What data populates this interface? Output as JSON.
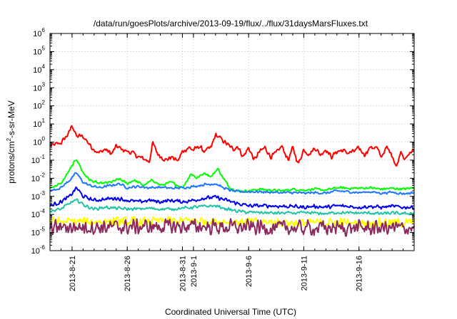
{
  "chart_data": {
    "type": "line",
    "title": "/data/run/goesPlots/archive/2013-09-19/flux/../flux/31daysMarsFluxes.txt",
    "xlabel": "Coordinated Universal Time (UTC)",
    "ylabel": "protons/cm2-s-sr-MeV",
    "ylabel_parts": {
      "base": "protons/cm",
      "sup": "2",
      "rest": "-s-sr-MeV"
    },
    "y_scale": "log",
    "ylim_exp": [
      -6,
      6
    ],
    "y_ticks": [
      {
        "base": "10",
        "exp": "-6"
      },
      {
        "base": "10",
        "exp": "-5"
      },
      {
        "base": "10",
        "exp": "-4"
      },
      {
        "base": "10",
        "exp": "-3"
      },
      {
        "base": "10",
        "exp": "-2"
      },
      {
        "base": "10",
        "exp": "-1"
      },
      {
        "base": "10",
        "exp": "0"
      },
      {
        "base": "10",
        "exp": "1"
      },
      {
        "base": "10",
        "exp": "2"
      },
      {
        "base": "10",
        "exp": "3"
      },
      {
        "base": "10",
        "exp": "4"
      },
      {
        "base": "10",
        "exp": "5"
      },
      {
        "base": "10",
        "exp": "6"
      }
    ],
    "xlim": [
      "2013-08-19",
      "2013-09-21"
    ],
    "x_ticks": [
      {
        "date": "2013-08-21",
        "label": "2013-8-21"
      },
      {
        "date": "2013-08-26",
        "label": "2013-8-26"
      },
      {
        "date": "2013-08-31",
        "label": "2013-8-31"
      },
      {
        "date": "2013-09-01",
        "label": "2013-9-1"
      },
      {
        "date": "2013-09-06",
        "label": "2013-9-6"
      },
      {
        "date": "2013-09-11",
        "label": "2013-9-11"
      },
      {
        "date": "2013-09-16",
        "label": "2013-9-16"
      }
    ],
    "grid": true,
    "series": [
      {
        "color": "#ff0000",
        "noise": 0.15,
        "points": [
          [
            "2013-08-19",
            0.6
          ],
          [
            "2013-08-20",
            0.9
          ],
          [
            "2013-08-20.7",
            3
          ],
          [
            "2013-08-21",
            9
          ],
          [
            "2013-08-21.4",
            2
          ],
          [
            "2013-08-21.8",
            2.2
          ],
          [
            "2013-08-22.2",
            1.5
          ],
          [
            "2013-08-22.8",
            0.5
          ],
          [
            "2013-08-23.4",
            0.25
          ],
          [
            "2013-08-24",
            0.4
          ],
          [
            "2013-08-24.6",
            0.22
          ],
          [
            "2013-08-25",
            0.6
          ],
          [
            "2013-08-25.5",
            0.4
          ],
          [
            "2013-08-26",
            0.3
          ],
          [
            "2013-08-26.5",
            0.25
          ],
          [
            "2013-08-27",
            0.15
          ],
          [
            "2013-08-27.5",
            0.12
          ],
          [
            "2013-08-28",
            0.08
          ],
          [
            "2013-08-28.3",
            0.9
          ],
          [
            "2013-08-28.8",
            0.2
          ],
          [
            "2013-08-29.5",
            0.1
          ],
          [
            "2013-08-30",
            0.15
          ],
          [
            "2013-08-30.6",
            0.09
          ],
          [
            "2013-08-31",
            0.3
          ],
          [
            "2013-08-31.6",
            0.5
          ],
          [
            "2013-09-01",
            0.35
          ],
          [
            "2013-09-01.5",
            0.6
          ],
          [
            "2013-09-02",
            0.3
          ],
          [
            "2013-09-02.6",
            0.5
          ],
          [
            "2013-09-03",
            2.5
          ],
          [
            "2013-09-03.5",
            1.5
          ],
          [
            "2013-09-04",
            0.8
          ],
          [
            "2013-09-04.6",
            0.4
          ],
          [
            "2013-09-05",
            0.6
          ],
          [
            "2013-09-05.5",
            0.15
          ],
          [
            "2013-09-06",
            0.5
          ],
          [
            "2013-09-06.5",
            0.1
          ],
          [
            "2013-09-07",
            0.3
          ],
          [
            "2013-09-07.5",
            0.5
          ],
          [
            "2013-09-08",
            0.15
          ],
          [
            "2013-09-08.5",
            0.25
          ],
          [
            "2013-09-09",
            0.6
          ],
          [
            "2013-09-09.6",
            0.1
          ],
          [
            "2013-09-10",
            0.5
          ],
          [
            "2013-09-10.5",
            0.06
          ],
          [
            "2013-09-11",
            0.4
          ],
          [
            "2013-09-11.5",
            0.2
          ],
          [
            "2013-09-12",
            0.5
          ],
          [
            "2013-09-12.5",
            0.2
          ],
          [
            "2013-09-13",
            0.4
          ],
          [
            "2013-09-13.5",
            0.15
          ],
          [
            "2013-09-14",
            0.3
          ],
          [
            "2013-09-14.5",
            0.35
          ],
          [
            "2013-09-15",
            0.25
          ],
          [
            "2013-09-15.5",
            0.3
          ],
          [
            "2013-09-16",
            0.45
          ],
          [
            "2013-09-16.5",
            0.2
          ],
          [
            "2013-09-17",
            0.5
          ],
          [
            "2013-09-17.6",
            0.5
          ],
          [
            "2013-09-18",
            0.15
          ],
          [
            "2013-09-18.5",
            0.5
          ],
          [
            "2013-09-19",
            0.2
          ],
          [
            "2013-09-19.4",
            0.04
          ],
          [
            "2013-09-19.8",
            0.35
          ],
          [
            "2013-09-20.2",
            0.1
          ],
          [
            "2013-09-20.6",
            0.25
          ],
          [
            "2013-09-21",
            0.35
          ]
        ]
      },
      {
        "color": "#00ff00",
        "noise": 0.08,
        "points": [
          [
            "2013-08-19",
            0.003
          ],
          [
            "2013-08-20",
            0.005
          ],
          [
            "2013-08-20.8",
            0.03
          ],
          [
            "2013-08-21.4",
            0.12
          ],
          [
            "2013-08-22",
            0.02
          ],
          [
            "2013-08-22.6",
            0.008
          ],
          [
            "2013-08-23.5",
            0.005
          ],
          [
            "2013-08-24.5",
            0.006
          ],
          [
            "2013-08-25.3",
            0.009
          ],
          [
            "2013-08-26",
            0.005
          ],
          [
            "2013-08-26.6",
            0.008
          ],
          [
            "2013-08-27.5",
            0.004
          ],
          [
            "2013-08-28.3",
            0.008
          ],
          [
            "2013-08-29",
            0.004
          ],
          [
            "2013-08-30",
            0.006
          ],
          [
            "2013-08-31",
            0.003
          ],
          [
            "2013-08-31.8",
            0.018
          ],
          [
            "2013-09-01.3",
            0.01
          ],
          [
            "2013-09-02",
            0.02
          ],
          [
            "2013-09-02.6",
            0.012
          ],
          [
            "2013-09-03.2",
            0.035
          ],
          [
            "2013-09-03.7",
            0.01
          ],
          [
            "2013-09-04.3",
            0.003
          ],
          [
            "2013-09-05",
            0.002
          ],
          [
            "2013-09-06",
            0.002
          ],
          [
            "2013-09-07",
            0.0025
          ],
          [
            "2013-09-08",
            0.0022
          ],
          [
            "2013-09-09",
            0.002
          ],
          [
            "2013-09-10",
            0.0025
          ],
          [
            "2013-09-11",
            0.0022
          ],
          [
            "2013-09-12",
            0.0025
          ],
          [
            "2013-09-13",
            0.0022
          ],
          [
            "2013-09-14",
            0.003
          ],
          [
            "2013-09-15",
            0.0028
          ],
          [
            "2013-09-16",
            0.0028
          ],
          [
            "2013-09-17",
            0.003
          ],
          [
            "2013-09-18",
            0.0025
          ],
          [
            "2013-09-19",
            0.0028
          ],
          [
            "2013-09-20",
            0.0025
          ],
          [
            "2013-09-21",
            0.003
          ]
        ]
      },
      {
        "color": "#1e78ff",
        "noise": 0.08,
        "points": [
          [
            "2013-08-19",
            0.002
          ],
          [
            "2013-08-20",
            0.003
          ],
          [
            "2013-08-20.8",
            0.008
          ],
          [
            "2013-08-21.4",
            0.02
          ],
          [
            "2013-08-22",
            0.006
          ],
          [
            "2013-08-22.6",
            0.004
          ],
          [
            "2013-08-23.5",
            0.003
          ],
          [
            "2013-08-24.5",
            0.004
          ],
          [
            "2013-08-25.3",
            0.005
          ],
          [
            "2013-08-26",
            0.003
          ],
          [
            "2013-08-27",
            0.0035
          ],
          [
            "2013-08-28",
            0.003
          ],
          [
            "2013-08-29",
            0.0032
          ],
          [
            "2013-08-30",
            0.0028
          ],
          [
            "2013-08-31",
            0.003
          ],
          [
            "2013-09-01",
            0.0035
          ],
          [
            "2013-09-02",
            0.0045
          ],
          [
            "2013-09-03",
            0.005
          ],
          [
            "2013-09-03.7",
            0.003
          ],
          [
            "2013-09-04.3",
            0.0022
          ],
          [
            "2013-09-05",
            0.0018
          ],
          [
            "2013-09-06",
            0.0018
          ],
          [
            "2013-09-07",
            0.0018
          ],
          [
            "2013-09-08",
            0.0017
          ],
          [
            "2013-09-09",
            0.0016
          ],
          [
            "2013-09-10",
            0.0016
          ],
          [
            "2013-09-11",
            0.0015
          ],
          [
            "2013-09-12",
            0.0016
          ],
          [
            "2013-09-13",
            0.0015
          ],
          [
            "2013-09-14",
            0.002
          ],
          [
            "2013-09-15",
            0.0018
          ],
          [
            "2013-09-16",
            0.0016
          ],
          [
            "2013-09-17",
            0.0018
          ],
          [
            "2013-09-18",
            0.0015
          ],
          [
            "2013-09-19",
            0.0017
          ],
          [
            "2013-09-20",
            0.0014
          ],
          [
            "2013-09-21",
            0.0016
          ]
        ]
      },
      {
        "color": "#0000ee",
        "noise": 0.12,
        "points": [
          [
            "2013-08-19",
            0.0003
          ],
          [
            "2013-08-20",
            0.0005
          ],
          [
            "2013-08-20.8",
            0.001
          ],
          [
            "2013-08-21.4",
            0.003
          ],
          [
            "2013-08-22",
            0.001
          ],
          [
            "2013-08-23",
            0.0006
          ],
          [
            "2013-08-24",
            0.0007
          ],
          [
            "2013-08-25",
            0.0008
          ],
          [
            "2013-08-26",
            0.0006
          ],
          [
            "2013-08-27",
            0.0005
          ],
          [
            "2013-08-28",
            0.0006
          ],
          [
            "2013-08-29",
            0.0005
          ],
          [
            "2013-08-30",
            0.0006
          ],
          [
            "2013-08-31",
            0.0005
          ],
          [
            "2013-09-01",
            0.0006
          ],
          [
            "2013-09-02",
            0.0008
          ],
          [
            "2013-09-03",
            0.0009
          ],
          [
            "2013-09-04",
            0.0006
          ],
          [
            "2013-09-05",
            0.0004
          ],
          [
            "2013-09-06",
            0.0003
          ],
          [
            "2013-09-07",
            0.0003
          ],
          [
            "2013-09-08",
            0.0003
          ],
          [
            "2013-09-09",
            0.00028
          ],
          [
            "2013-09-10",
            0.00028
          ],
          [
            "2013-09-11",
            0.00025
          ],
          [
            "2013-09-12",
            0.00028
          ],
          [
            "2013-09-13",
            0.00025
          ],
          [
            "2013-09-14",
            0.0003
          ],
          [
            "2013-09-15",
            0.00028
          ],
          [
            "2013-09-16",
            0.00025
          ],
          [
            "2013-09-17",
            0.00028
          ],
          [
            "2013-09-18",
            0.00025
          ],
          [
            "2013-09-19",
            0.00028
          ],
          [
            "2013-09-20",
            0.00025
          ],
          [
            "2013-09-21",
            0.00025
          ]
        ]
      },
      {
        "color": "#20c4a8",
        "noise": 0.1,
        "points": [
          [
            "2013-08-19",
            0.00015
          ],
          [
            "2013-08-20",
            0.0002
          ],
          [
            "2013-08-21",
            0.0005
          ],
          [
            "2013-08-21.5",
            0.0006
          ],
          [
            "2013-08-22.2",
            0.0003
          ],
          [
            "2013-08-23",
            0.0002
          ],
          [
            "2013-08-24",
            0.00025
          ],
          [
            "2013-08-25",
            0.00022
          ],
          [
            "2013-08-26",
            0.0002
          ],
          [
            "2013-08-27",
            0.0002
          ],
          [
            "2013-08-28",
            0.00022
          ],
          [
            "2013-08-29",
            0.0002
          ],
          [
            "2013-08-30",
            0.0002
          ],
          [
            "2013-08-31",
            0.00022
          ],
          [
            "2013-09-01",
            0.00025
          ],
          [
            "2013-09-02",
            0.00028
          ],
          [
            "2013-09-03",
            0.0003
          ],
          [
            "2013-09-04",
            0.0002
          ],
          [
            "2013-09-05",
            0.00015
          ],
          [
            "2013-09-06",
            0.00013
          ],
          [
            "2013-09-07",
            0.00013
          ],
          [
            "2013-09-08",
            0.00012
          ],
          [
            "2013-09-09",
            0.00012
          ],
          [
            "2013-09-10",
            0.00012
          ],
          [
            "2013-09-11",
            0.00012
          ],
          [
            "2013-09-12",
            0.00012
          ],
          [
            "2013-09-13",
            0.00011
          ],
          [
            "2013-09-14",
            0.00013
          ],
          [
            "2013-09-15",
            0.00012
          ],
          [
            "2013-09-16",
            0.00012
          ],
          [
            "2013-09-17",
            0.00012
          ],
          [
            "2013-09-18",
            0.00011
          ],
          [
            "2013-09-19",
            0.00012
          ],
          [
            "2013-09-20",
            0.00011
          ],
          [
            "2013-09-21",
            0.00012
          ]
        ]
      },
      {
        "color": "#ffff00",
        "noise": 0.3,
        "points": [
          [
            "2013-08-19",
            4e-05
          ],
          [
            "2013-08-25",
            4e-05
          ],
          [
            "2013-09-01",
            4.5e-05
          ],
          [
            "2013-09-04",
            4e-05
          ],
          [
            "2013-09-10",
            3.5e-05
          ],
          [
            "2013-09-16",
            3.5e-05
          ],
          [
            "2013-09-21",
            3.5e-05
          ]
        ]
      },
      {
        "color": "#8b2a5e",
        "noise": 0.5,
        "points": [
          [
            "2013-08-19",
            2e-05
          ],
          [
            "2013-08-25",
            2e-05
          ],
          [
            "2013-09-01",
            2.2e-05
          ],
          [
            "2013-09-04",
            2e-05
          ],
          [
            "2013-09-10",
            1.8e-05
          ],
          [
            "2013-09-16",
            1.8e-05
          ],
          [
            "2013-09-21",
            1.8e-05
          ]
        ]
      }
    ]
  }
}
